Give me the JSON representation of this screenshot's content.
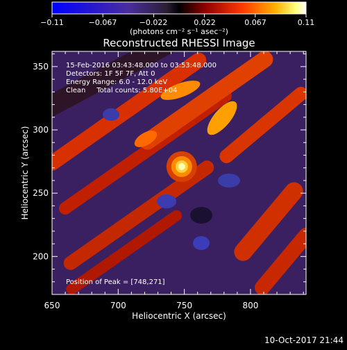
{
  "colorbar": {
    "ticks": [
      "−0.11",
      "−0.067",
      "−0.022",
      "0.022",
      "0.067",
      "0.11"
    ],
    "unit_label": "(photons cm⁻² s⁻¹ asec⁻²)",
    "colormap": [
      "#0000ff",
      "#4b2d9e",
      "#2b1f35",
      "#000000",
      "#8c0000",
      "#ff3a00",
      "#ffb000",
      "#ffff80",
      "#ffffff"
    ]
  },
  "footer": {
    "timestamp": "10-Oct-2017 21:44"
  },
  "chart_data": {
    "type": "heatmap",
    "title": "Reconstructed RHESSI Image",
    "xlabel": "Heliocentric X (arcsec)",
    "ylabel": "Heliocentric Y (arcsec)",
    "xlim": [
      650,
      842
    ],
    "ylim": [
      170,
      362
    ],
    "x_ticks": [
      650,
      700,
      750,
      800
    ],
    "y_ticks": [
      200,
      250,
      300,
      350
    ],
    "clim": [
      -0.11,
      0.11
    ],
    "annotations": [
      "15-Feb-2016 03:43:48.000 to 03:53:48.000",
      "Detectors: 1F 5F 7F, Att 0",
      "Energy Range: 6.0 - 12.0 keV",
      "Clean     Total counts: 5.80E+04"
    ],
    "peak_label": "Position of Peak = [748,271]",
    "peak": {
      "x": 748,
      "y": 271
    }
  }
}
